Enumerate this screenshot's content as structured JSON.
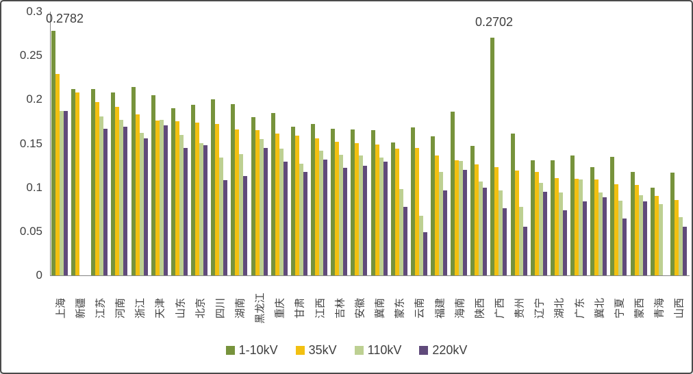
{
  "chart_data": {
    "type": "bar",
    "title": "",
    "xlabel": "",
    "ylabel": "",
    "categories": [
      "上海",
      "新疆",
      "江苏",
      "河南",
      "浙江",
      "天津",
      "山东",
      "北京",
      "四川",
      "湖南",
      "黑龙江",
      "重庆",
      "甘肃",
      "江西",
      "吉林",
      "安徽",
      "冀南",
      "蒙东",
      "云南",
      "福建",
      "海南",
      "陕西",
      "广西",
      "贵州",
      "辽宁",
      "湖北",
      "广东",
      "冀北",
      "宁夏",
      "蒙西",
      "青海",
      "山西"
    ],
    "series": [
      {
        "name": "1-10kV",
        "color": "#77933C",
        "values": [
          0.2782,
          0.212,
          0.212,
          0.208,
          0.214,
          0.205,
          0.19,
          0.194,
          0.2,
          0.195,
          0.18,
          0.185,
          0.169,
          0.172,
          0.167,
          0.166,
          0.165,
          0.151,
          0.168,
          0.158,
          0.186,
          0.147,
          0.2702,
          0.161,
          0.131,
          0.131,
          0.136,
          0.123,
          0.135,
          0.118,
          0.1,
          0.117
        ]
      },
      {
        "name": "35kV",
        "color": "#F2C011",
        "values": [
          0.229,
          0.208,
          0.197,
          0.192,
          0.183,
          0.176,
          0.175,
          0.174,
          0.172,
          0.166,
          0.165,
          0.161,
          0.159,
          0.156,
          0.152,
          0.15,
          0.149,
          0.144,
          0.145,
          0.136,
          0.131,
          0.126,
          0.123,
          0.119,
          0.118,
          0.111,
          0.11,
          0.109,
          0.104,
          0.103,
          0.09,
          0.086
        ]
      },
      {
        "name": "110kV",
        "color": "#BDD092",
        "values": [
          0.187,
          null,
          0.181,
          0.177,
          0.162,
          0.177,
          0.16,
          0.15,
          0.134,
          0.138,
          0.155,
          0.144,
          0.127,
          0.142,
          0.137,
          0.136,
          0.134,
          0.098,
          0.068,
          0.118,
          0.13,
          0.107,
          0.097,
          0.078,
          0.105,
          0.094,
          0.109,
          0.094,
          0.085,
          0.091,
          0.081,
          0.066
        ]
      },
      {
        "name": "220kV",
        "color": "#604A7B",
        "values": [
          0.187,
          null,
          0.167,
          0.169,
          0.156,
          0.171,
          0.145,
          0.148,
          0.108,
          0.113,
          0.145,
          0.129,
          0.118,
          0.132,
          0.122,
          0.125,
          0.129,
          0.078,
          0.049,
          0.097,
          0.12,
          0.1,
          0.076,
          0.055,
          0.095,
          0.074,
          0.084,
          0.089,
          0.065,
          0.084,
          null,
          0.055
        ]
      }
    ],
    "y_axis": {
      "min": 0,
      "max": 0.3,
      "tick_interval": 0.05,
      "tick_labels": [
        "0",
        "0.05",
        "0.1",
        "0.15",
        "0.2",
        "0.25",
        "0.3"
      ]
    },
    "annotations": [
      {
        "text": "0.2782",
        "series": "1-10kV",
        "category": "上海"
      },
      {
        "text": "0.2702",
        "series": "1-10kV",
        "category": "广西"
      }
    ],
    "legend_position": "bottom",
    "grid": false
  }
}
